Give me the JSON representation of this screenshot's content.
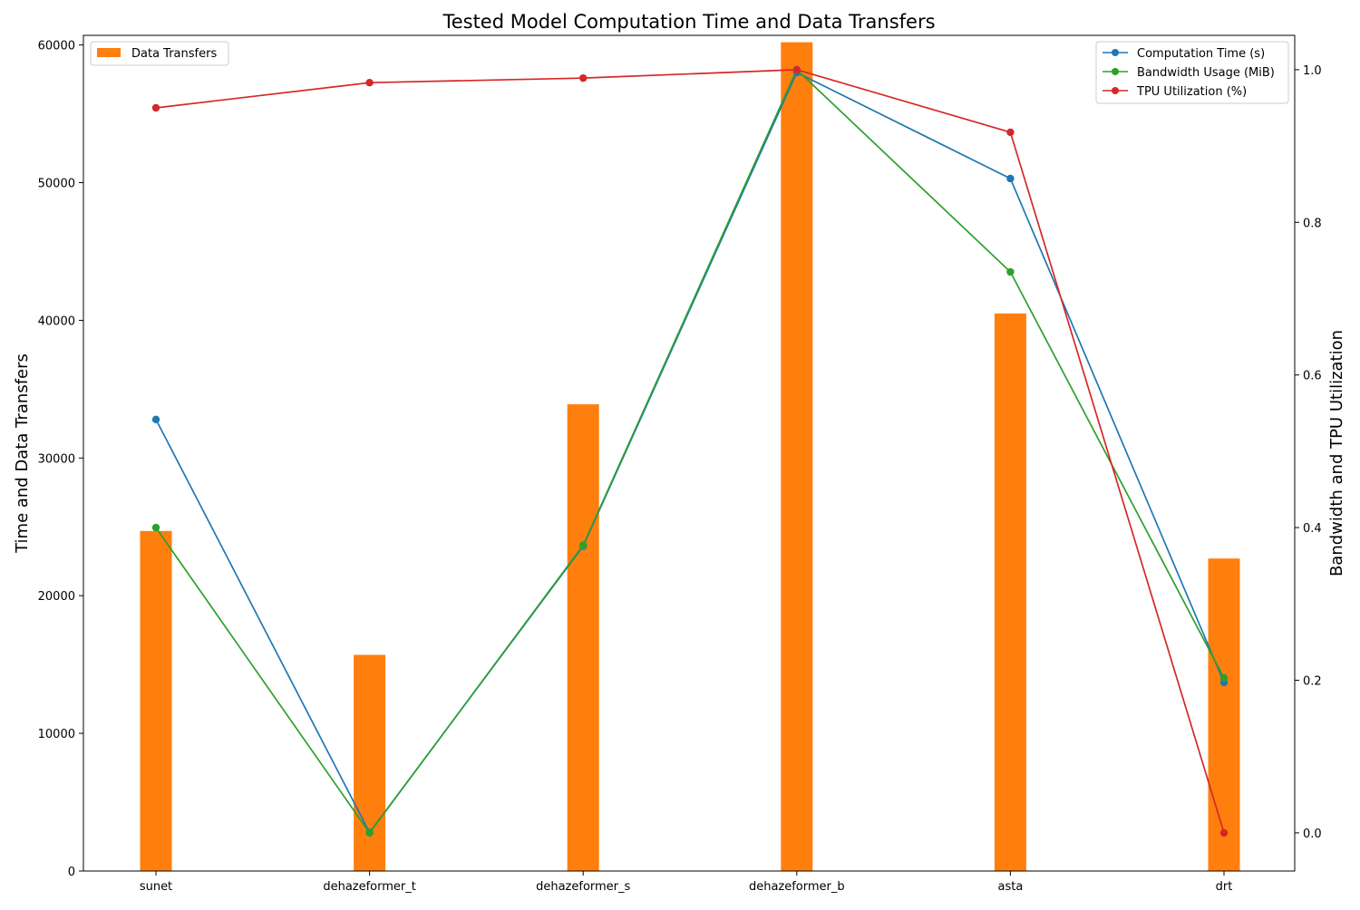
{
  "chart_data": {
    "type": "bar",
    "title": "Tested Model Computation Time and Data Transfers",
    "xlabel": "",
    "ylabel": "Time and Data Transfers",
    "y2label": "Bandwidth and TPU Utilization",
    "categories": [
      "sunet",
      "dehazeformer_t",
      "dehazeformer_s",
      "dehazeformer_b",
      "asta",
      "drt"
    ],
    "ylim": [
      0,
      60700
    ],
    "yticks": [
      0,
      10000,
      20000,
      30000,
      40000,
      50000,
      60000
    ],
    "y2lim": [
      -0.05,
      1.045
    ],
    "y2ticks": [
      "0.0",
      "0.2",
      "0.4",
      "0.6",
      "0.8",
      "1.0"
    ],
    "grid": false,
    "bars": {
      "name": "Data Transfers",
      "color": "#ff7f0e",
      "axis": "left",
      "values": [
        24700,
        15700,
        33900,
        60200,
        40500,
        22700
      ]
    },
    "lines": [
      {
        "name": "Computation Time (s)",
        "color": "#1f77b4",
        "axis": "left",
        "values": [
          32800,
          2800,
          23600,
          58000,
          50300,
          13700
        ]
      },
      {
        "name": "Bandwidth Usage (MiB)",
        "color": "#2ca02c",
        "axis": "right",
        "values": [
          0.4,
          0.0,
          0.377,
          1.0,
          0.735,
          0.203
        ]
      },
      {
        "name": "TPU Utilization (%)",
        "color": "#d62728",
        "axis": "right",
        "values": [
          0.95,
          0.983,
          0.989,
          1.0,
          0.918,
          0.0
        ]
      }
    ],
    "legend_left_position": "top-left",
    "legend_right_position": "top-right"
  }
}
